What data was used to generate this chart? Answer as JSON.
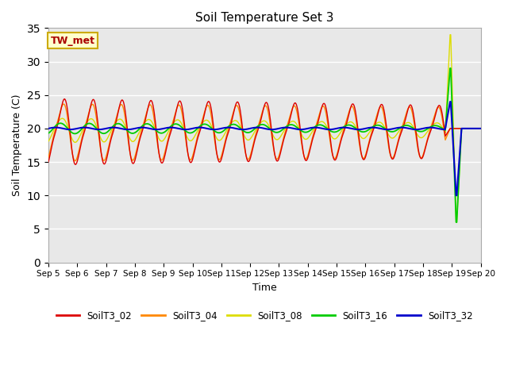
{
  "title": "Soil Temperature Set 3",
  "xlabel": "Time",
  "ylabel": "Soil Temperature (C)",
  "ylim": [
    0,
    35
  ],
  "yticks": [
    0,
    5,
    10,
    15,
    20,
    25,
    30,
    35
  ],
  "series_colors": {
    "SoilT3_02": "#dd0000",
    "SoilT3_04": "#ff8800",
    "SoilT3_08": "#dddd00",
    "SoilT3_16": "#00cc00",
    "SoilT3_32": "#0000cc"
  },
  "bg_color": "#e8e8e8",
  "annotation_text": "TW_met",
  "annotation_fgcolor": "#aa0000",
  "annotation_bgcolor": "#ffffcc",
  "annotation_edgecolor": "#ccaa00"
}
